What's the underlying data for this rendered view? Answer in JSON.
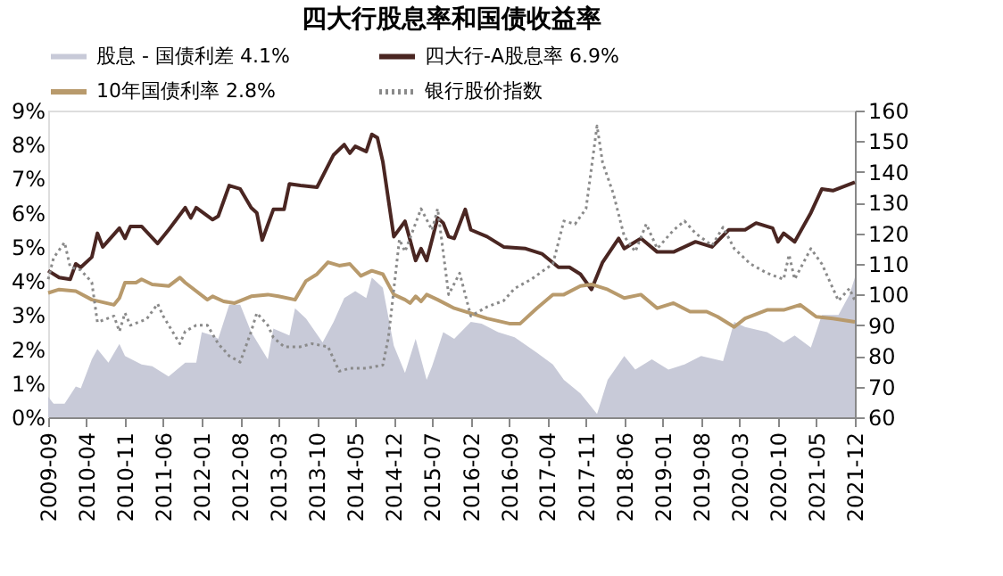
{
  "chart_data": {
    "type": "line",
    "title": "四大行股息率和国债收益率",
    "xlim": [
      "2009-09",
      "2021-12"
    ],
    "xticks": [
      "2009-09",
      "2010-04",
      "2010-11",
      "2011-06",
      "2012-01",
      "2012-08",
      "2013-03",
      "2013-10",
      "2014-05",
      "2014-12",
      "2015-07",
      "2016-02",
      "2016-09",
      "2017-04",
      "2017-11",
      "2018-06",
      "2019-01",
      "2019-08",
      "2020-03",
      "2020-10",
      "2021-05",
      "2021-12"
    ],
    "ylim": [
      0,
      9
    ],
    "yticks": [
      {
        "value": 0,
        "label": "0%"
      },
      {
        "value": 1,
        "label": "1%"
      },
      {
        "value": 2,
        "label": "2%"
      },
      {
        "value": 3,
        "label": "3%"
      },
      {
        "value": 4,
        "label": "4%"
      },
      {
        "value": 5,
        "label": "5%"
      },
      {
        "value": 6,
        "label": "6%"
      },
      {
        "value": 7,
        "label": "7%"
      },
      {
        "value": 8,
        "label": "8%"
      },
      {
        "value": 9,
        "label": "9%"
      }
    ],
    "y2lim": [
      60,
      160
    ],
    "y2ticks": [
      60,
      70,
      80,
      90,
      100,
      110,
      120,
      130,
      140,
      150,
      160
    ],
    "grid": false,
    "legend": "top",
    "line_style": "solid",
    "marker": "none",
    "series": [
      {
        "name": "股息 - 国债利差  4.1%",
        "type": "area",
        "color": "#c8cad8",
        "x": [
          "2009-09",
          "2009-10",
          "2009-12",
          "2010-02",
          "2010-03",
          "2010-05",
          "2010-06",
          "2010-08",
          "2010-10",
          "2010-11",
          "2011-02",
          "2011-04",
          "2011-07",
          "2011-10",
          "2011-12",
          "2012-01",
          "2012-03",
          "2012-04",
          "2012-06",
          "2012-08",
          "2012-10",
          "2013-01",
          "2013-02",
          "2013-05",
          "2013-06",
          "2013-08",
          "2013-11",
          "2014-01",
          "2014-03",
          "2014-05",
          "2014-07",
          "2014-08",
          "2014-10",
          "2014-12",
          "2015-02",
          "2015-04",
          "2015-06",
          "2015-07",
          "2015-09",
          "2015-11",
          "2016-02",
          "2016-04",
          "2016-07",
          "2016-10",
          "2017-02",
          "2017-05",
          "2017-07",
          "2017-10",
          "2018-01",
          "2018-03",
          "2018-06",
          "2018-08",
          "2018-11",
          "2019-02",
          "2019-05",
          "2019-08",
          "2019-12",
          "2020-02",
          "2020-04",
          "2020-08",
          "2020-11",
          "2021-01",
          "2021-04",
          "2021-06",
          "2021-09",
          "2021-11",
          "2021-12"
        ],
        "values": [
          0.6,
          0.4,
          0.4,
          0.9,
          0.85,
          1.7,
          2.0,
          1.6,
          2.15,
          1.8,
          1.55,
          1.5,
          1.2,
          1.6,
          1.6,
          2.5,
          2.4,
          2.3,
          3.3,
          3.3,
          2.5,
          1.7,
          2.6,
          2.4,
          3.2,
          2.9,
          2.2,
          2.8,
          3.5,
          3.7,
          3.5,
          4.1,
          3.8,
          2.1,
          1.3,
          2.3,
          1.1,
          1.5,
          2.5,
          2.3,
          2.8,
          2.75,
          2.5,
          2.35,
          1.9,
          1.55,
          1.1,
          0.7,
          0.1,
          1.1,
          1.8,
          1.4,
          1.7,
          1.4,
          1.55,
          1.8,
          1.65,
          2.8,
          2.65,
          2.5,
          2.2,
          2.4,
          2.05,
          3.0,
          3.0,
          3.6,
          4.1
        ]
      },
      {
        "name": "四大行-A股息率 6.9%",
        "type": "line",
        "color": "#4a2622",
        "x": [
          "2009-09",
          "2009-11",
          "2010-01",
          "2010-02",
          "2010-03",
          "2010-05",
          "2010-06",
          "2010-07",
          "2010-10",
          "2010-11",
          "2010-12",
          "2011-02",
          "2011-05",
          "2011-07",
          "2011-10",
          "2011-11",
          "2011-12",
          "2012-03",
          "2012-04",
          "2012-06",
          "2012-08",
          "2012-10",
          "2012-11",
          "2012-12",
          "2013-02",
          "2013-04",
          "2013-05",
          "2013-07",
          "2013-10",
          "2014-01",
          "2014-03",
          "2014-04",
          "2014-05",
          "2014-07",
          "2014-08",
          "2014-09",
          "2014-10",
          "2014-12",
          "2015-02",
          "2015-04",
          "2015-05",
          "2015-06",
          "2015-08",
          "2015-09",
          "2015-10",
          "2015-11",
          "2016-01",
          "2016-02",
          "2016-05",
          "2016-08",
          "2016-12",
          "2017-03",
          "2017-06",
          "2017-08",
          "2017-10",
          "2017-12",
          "2018-02",
          "2018-05",
          "2018-06",
          "2018-09",
          "2018-12",
          "2019-03",
          "2019-07",
          "2019-10",
          "2020-01",
          "2020-04",
          "2020-06",
          "2020-09",
          "2020-10",
          "2020-11",
          "2021-01",
          "2021-04",
          "2021-06",
          "2021-08",
          "2021-12"
        ],
        "values": [
          4.3,
          4.1,
          4.05,
          4.5,
          4.4,
          4.7,
          5.4,
          5.0,
          5.55,
          5.25,
          5.6,
          5.6,
          5.1,
          5.5,
          6.15,
          5.85,
          6.15,
          5.8,
          5.9,
          6.8,
          6.7,
          6.15,
          6.0,
          5.2,
          6.1,
          6.1,
          6.85,
          6.8,
          6.75,
          7.7,
          8.0,
          7.75,
          7.95,
          7.8,
          8.3,
          8.2,
          7.5,
          5.3,
          5.75,
          4.6,
          4.95,
          4.6,
          5.85,
          5.7,
          5.3,
          5.25,
          6.1,
          5.5,
          5.3,
          5.0,
          4.95,
          4.8,
          4.4,
          4.4,
          4.2,
          3.75,
          4.55,
          5.25,
          4.95,
          5.25,
          4.85,
          4.85,
          5.15,
          5.0,
          5.5,
          5.5,
          5.7,
          5.55,
          5.15,
          5.4,
          5.15,
          6.0,
          6.7,
          6.65,
          6.9
        ]
      },
      {
        "name": "10年国债利率 2.8%",
        "type": "line",
        "color": "#b89a6c",
        "x": [
          "2009-09",
          "2009-11",
          "2010-02",
          "2010-05",
          "2010-09",
          "2010-10",
          "2010-11",
          "2011-01",
          "2011-02",
          "2011-04",
          "2011-07",
          "2011-09",
          "2011-10",
          "2012-02",
          "2012-03",
          "2012-05",
          "2012-07",
          "2012-10",
          "2013-01",
          "2013-03",
          "2013-06",
          "2013-08",
          "2013-10",
          "2013-12",
          "2014-02",
          "2014-04",
          "2014-06",
          "2014-08",
          "2014-10",
          "2014-12",
          "2015-02",
          "2015-03",
          "2015-04",
          "2015-05",
          "2015-06",
          "2015-08",
          "2015-11",
          "2016-02",
          "2016-05",
          "2016-09",
          "2016-11",
          "2017-02",
          "2017-05",
          "2017-07",
          "2017-10",
          "2017-12",
          "2018-03",
          "2018-06",
          "2018-09",
          "2018-12",
          "2019-03",
          "2019-06",
          "2019-09",
          "2019-11",
          "2020-02",
          "2020-04",
          "2020-08",
          "2020-11",
          "2021-02",
          "2021-05",
          "2021-08",
          "2021-12"
        ],
        "values": [
          3.65,
          3.75,
          3.7,
          3.45,
          3.3,
          3.5,
          3.95,
          3.95,
          4.05,
          3.9,
          3.85,
          4.1,
          3.95,
          3.45,
          3.55,
          3.4,
          3.35,
          3.55,
          3.6,
          3.55,
          3.45,
          4.0,
          4.2,
          4.55,
          4.45,
          4.5,
          4.15,
          4.3,
          4.2,
          3.6,
          3.45,
          3.35,
          3.55,
          3.4,
          3.6,
          3.45,
          3.2,
          3.05,
          2.9,
          2.75,
          2.75,
          3.2,
          3.6,
          3.6,
          3.85,
          3.9,
          3.75,
          3.5,
          3.6,
          3.2,
          3.35,
          3.1,
          3.1,
          2.95,
          2.65,
          2.9,
          3.15,
          3.15,
          3.3,
          2.95,
          2.9,
          2.8
        ]
      },
      {
        "name": "银行股价指数",
        "type": "line",
        "axis": "y2",
        "line_style": "dotted",
        "color": "#8a8a8a",
        "x": [
          "2009-09",
          "2009-10",
          "2009-12",
          "2010-01",
          "2010-03",
          "2010-05",
          "2010-06",
          "2010-09",
          "2010-10",
          "2010-11",
          "2010-12",
          "2011-03",
          "2011-05",
          "2011-06",
          "2011-09",
          "2011-10",
          "2011-12",
          "2012-02",
          "2012-04",
          "2012-06",
          "2012-08",
          "2012-10",
          "2012-11",
          "2013-01",
          "2013-02",
          "2013-04",
          "2013-07",
          "2013-09",
          "2013-12",
          "2014-02",
          "2014-04",
          "2014-07",
          "2014-10",
          "2014-11",
          "2015-01",
          "2015-02",
          "2015-05",
          "2015-07",
          "2015-08",
          "2015-10",
          "2015-12",
          "2016-02",
          "2016-05",
          "2016-08",
          "2016-10",
          "2017-01",
          "2017-05",
          "2017-07",
          "2017-09",
          "2017-11",
          "2018-01",
          "2018-02",
          "2018-04",
          "2018-06",
          "2018-08",
          "2018-10",
          "2018-12",
          "2019-03",
          "2019-05",
          "2019-07",
          "2019-10",
          "2019-12",
          "2020-02",
          "2020-05",
          "2020-08",
          "2020-11",
          "2020-12",
          "2021-01",
          "2021-04",
          "2021-06",
          "2021-09",
          "2021-11",
          "2021-12"
        ],
        "values": [
          105,
          112,
          117,
          109,
          108,
          104,
          91,
          93,
          88,
          94,
          90,
          92,
          97,
          93,
          84,
          88,
          90,
          90,
          84,
          80,
          78,
          88,
          94,
          90,
          86,
          83,
          83,
          84,
          83,
          75,
          76,
          76,
          77,
          86,
          118,
          114,
          128,
          121,
          128,
          100,
          107,
          93,
          96,
          98,
          102,
          105,
          110,
          124,
          123,
          128,
          155,
          143,
          133,
          119,
          114,
          123,
          115,
          121,
          124,
          120,
          116,
          122,
          115,
          110,
          107,
          105,
          113,
          105,
          115,
          110,
          98,
          102,
          98
        ]
      }
    ]
  }
}
